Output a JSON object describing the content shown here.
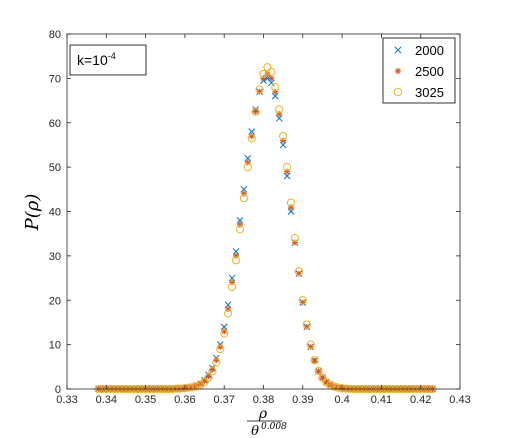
{
  "chart_data": {
    "type": "scatter",
    "title": "",
    "xlabel": {
      "numerator": "ρ",
      "denominator": "θ",
      "exponent": "0.008"
    },
    "ylabel": "P(ρ)",
    "xlim": [
      0.33,
      0.43
    ],
    "ylim": [
      0,
      80
    ],
    "xticks": [
      "0.33",
      "0.34",
      "0.35",
      "0.36",
      "0.37",
      "0.38",
      "0.39",
      "0.4",
      "0.41",
      "0.42",
      "0.43"
    ],
    "yticks": [
      "0",
      "10",
      "20",
      "30",
      "40",
      "50",
      "60",
      "70",
      "80"
    ],
    "grid": false,
    "legend_position": "top-right",
    "annotation": {
      "base": "k=10",
      "exponent": "-4"
    },
    "colors": {
      "2000": "#0072BD",
      "2500": "#D95319",
      "3025": "#EDB120"
    },
    "x_start": 0.338,
    "x_step": 0.001,
    "series": [
      {
        "name": "2000",
        "marker": "x",
        "values": [
          0,
          0,
          0,
          0,
          0,
          0,
          0,
          0,
          0,
          0,
          0,
          0,
          0,
          0,
          0,
          0,
          0,
          0,
          0,
          0,
          0.1,
          0.1,
          0.2,
          0.3,
          0.5,
          0.8,
          1.2,
          2.0,
          3.2,
          4.8,
          7,
          10,
          14,
          19,
          25,
          31,
          38,
          45,
          52,
          58,
          63,
          67,
          69.5,
          70,
          69,
          66,
          61,
          55,
          48,
          40,
          33,
          26,
          19.5,
          14,
          9.5,
          6.5,
          4,
          2.6,
          1.6,
          1.0,
          0.6,
          0.35,
          0.2,
          0.1,
          0.05,
          0,
          0,
          0,
          0,
          0,
          0,
          0,
          0,
          0,
          0,
          0,
          0,
          0,
          0,
          0,
          0,
          0,
          0,
          0,
          0,
          0
        ]
      },
      {
        "name": "2500",
        "marker": "asterisk",
        "values": [
          0,
          0,
          0,
          0,
          0,
          0,
          0,
          0,
          0,
          0,
          0,
          0,
          0,
          0,
          0,
          0,
          0,
          0,
          0,
          0,
          0.1,
          0.1,
          0.2,
          0.3,
          0.5,
          0.7,
          1.1,
          1.8,
          2.9,
          4.4,
          6.5,
          9.5,
          13,
          18,
          24,
          30,
          37,
          44,
          51,
          57,
          62.5,
          67,
          70,
          71,
          70,
          67,
          62,
          56,
          49,
          41,
          33,
          26,
          19.5,
          14,
          9.5,
          6.3,
          4,
          2.5,
          1.5,
          0.9,
          0.5,
          0.3,
          0.15,
          0.08,
          0.04,
          0,
          0,
          0,
          0,
          0,
          0,
          0,
          0,
          0,
          0,
          0,
          0,
          0,
          0,
          0,
          0,
          0,
          0,
          0,
          0,
          0
        ]
      },
      {
        "name": "3025",
        "marker": "o",
        "values": [
          0,
          0,
          0,
          0,
          0,
          0,
          0,
          0,
          0,
          0,
          0,
          0,
          0,
          0,
          0,
          0,
          0,
          0,
          0,
          0,
          0.1,
          0.1,
          0.2,
          0.3,
          0.4,
          0.6,
          1.0,
          1.6,
          2.6,
          4.0,
          6,
          9,
          12.5,
          17,
          23,
          29,
          36,
          43,
          50,
          56.5,
          62.5,
          67.5,
          71,
          72.5,
          71.5,
          68,
          63,
          57,
          50,
          42,
          34,
          26.5,
          20,
          14.5,
          10,
          6.5,
          4.1,
          2.5,
          1.5,
          0.9,
          0.5,
          0.3,
          0.15,
          0.08,
          0.04,
          0,
          0,
          0,
          0,
          0,
          0,
          0,
          0,
          0,
          0,
          0,
          0,
          0,
          0,
          0,
          0,
          0,
          0,
          0,
          0,
          0
        ]
      }
    ]
  }
}
